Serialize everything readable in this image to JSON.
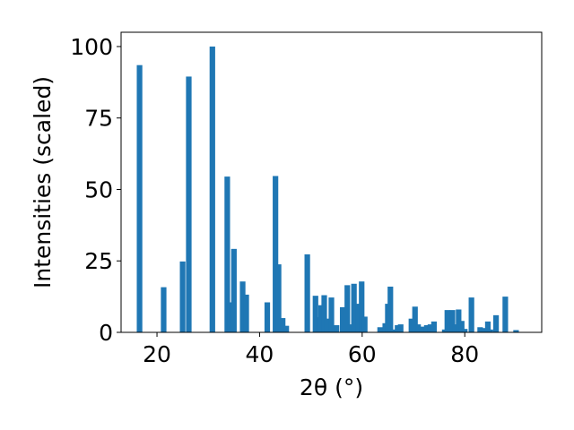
{
  "chart_data": {
    "type": "bar",
    "xlabel": "2θ (°)",
    "ylabel": "Intensities (scaled)",
    "xlim": [
      13,
      95
    ],
    "ylim": [
      0,
      105
    ],
    "xticks": [
      20,
      40,
      60,
      80
    ],
    "yticks": [
      0,
      25,
      50,
      75,
      100
    ],
    "grid": false,
    "bar_color": "#1f77b4",
    "bar_width": 0.7,
    "x": [
      16.6,
      21.3,
      25.0,
      26.2,
      30.8,
      33.7,
      34.3,
      35.0,
      36.7,
      37.4,
      41.5,
      43.1,
      43.7,
      44.5,
      45.2,
      49.3,
      50.9,
      51.5,
      52.0,
      52.6,
      53.2,
      54.0,
      55.0,
      56.2,
      57.1,
      57.8,
      58.4,
      59.2,
      59.9,
      60.5,
      63.5,
      64.5,
      65.0,
      65.5,
      66.0,
      66.9,
      67.5,
      69.6,
      70.3,
      70.9,
      71.6,
      72.6,
      73.3,
      74.0,
      76.1,
      76.6,
      77.1,
      77.6,
      78.1,
      78.8,
      79.4,
      80.0,
      81.3,
      83.0,
      83.8,
      84.5,
      85.0,
      86.1,
      87.9,
      90.0
    ],
    "values": [
      93.5,
      15.8,
      24.8,
      89.5,
      100.0,
      54.5,
      10.5,
      29.2,
      17.8,
      13.2,
      10.5,
      54.7,
      23.8,
      5.0,
      2.3,
      27.3,
      12.8,
      5.3,
      9.5,
      13.0,
      4.8,
      12.2,
      2.5,
      8.8,
      16.5,
      2.8,
      17.0,
      10.0,
      17.8,
      5.5,
      1.8,
      3.2,
      10.0,
      16.0,
      1.0,
      2.5,
      2.8,
      4.8,
      9.0,
      2.8,
      2.0,
      2.5,
      2.8,
      3.8,
      1.0,
      7.8,
      3.2,
      7.8,
      2.8,
      8.0,
      4.0,
      1.2,
      12.2,
      1.8,
      1.5,
      3.8,
      1.0,
      6.0,
      12.5,
      0.8
    ]
  }
}
